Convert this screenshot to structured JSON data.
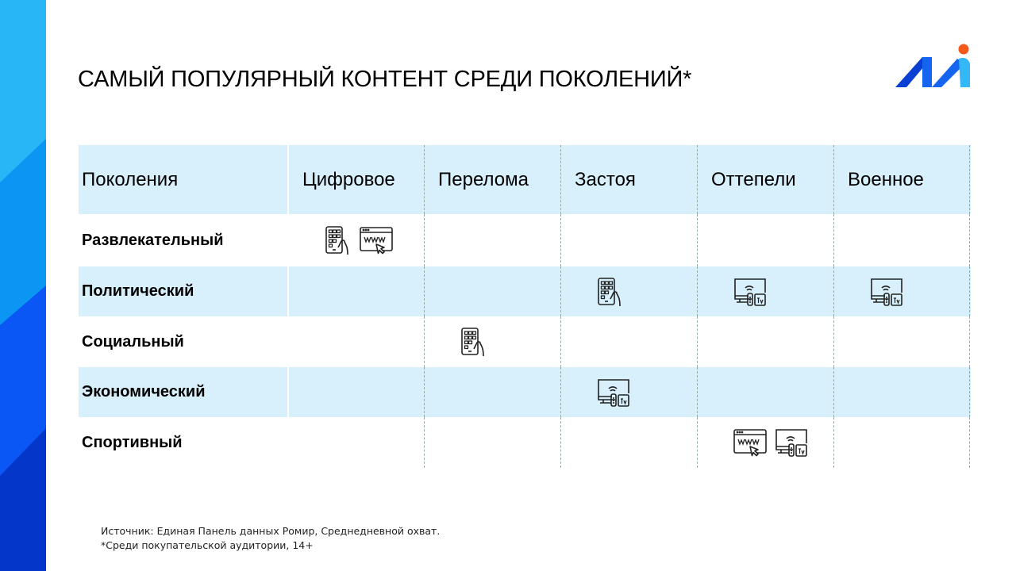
{
  "title": "САМЫЙ ПОПУЛЯРНЫЙ КОНТЕНТ СРЕДИ ПОКОЛЕНИЙ*",
  "colors": {
    "band1": "#29b6f6",
    "band2": "#0a96f2",
    "band3": "#0b57f5",
    "band4": "#0436c9",
    "header_bg": "#d7f0fb",
    "logo_dark": "#0a3fd4",
    "logo_mid": "#1565f0",
    "logo_light": "#33b7f7",
    "logo_dot": "#f4581b"
  },
  "table": {
    "headers": [
      "Поколения",
      "Цифровое",
      "Перелома",
      "Застоя",
      "Оттепели",
      "Военное"
    ],
    "rows": [
      {
        "label": "Развлекательный",
        "cells": [
          [
            "tablet-icon",
            "www-browser-icon"
          ],
          [],
          [],
          [],
          []
        ]
      },
      {
        "label": "Политический",
        "cells": [
          [],
          [],
          [
            "tablet-icon"
          ],
          [
            "tv-icon"
          ],
          [
            "tv-icon"
          ]
        ]
      },
      {
        "label": "Социальный",
        "cells": [
          [],
          [
            "tablet-icon"
          ],
          [],
          [],
          []
        ]
      },
      {
        "label": "Экономический",
        "cells": [
          [],
          [],
          [
            "tv-icon"
          ],
          [],
          []
        ]
      },
      {
        "label": "Спортивный",
        "cells": [
          [],
          [],
          [],
          [
            "www-browser-icon",
            "tv-icon"
          ],
          []
        ]
      }
    ]
  },
  "footer": {
    "source": "Источник: Единая Панель данных Ромир, Среднедневной охват.",
    "note": "*Среди покупательской аудитории, 14+"
  }
}
